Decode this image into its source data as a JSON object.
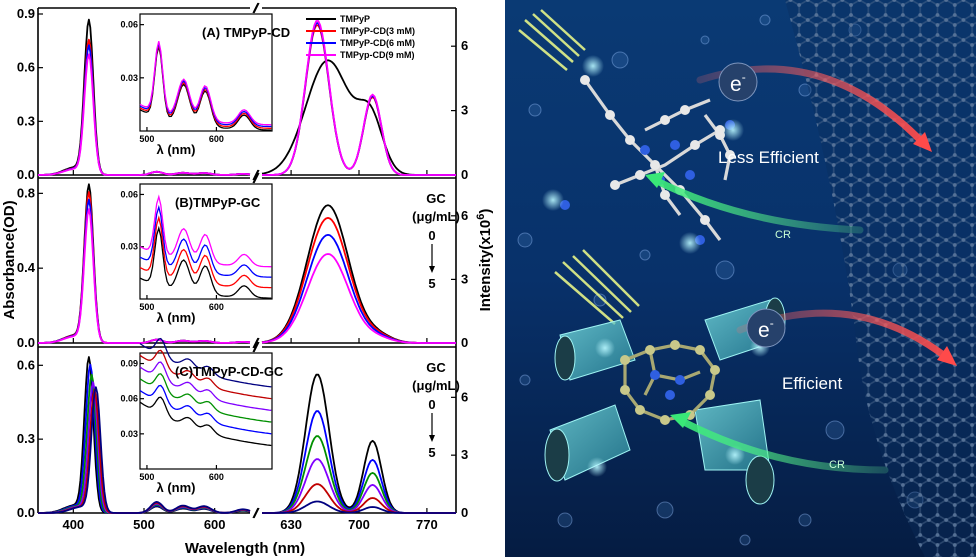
{
  "figure": {
    "xlabel": "Wavelength (nm)",
    "ylabel_left": "Absorbance(OD)",
    "ylabel_right_prefix": "Intensity(x10",
    "ylabel_right_exp": "6",
    "ylabel_right_suffix": ")",
    "inset_xlabel": "λ (nm)"
  },
  "chart_data": [
    {
      "id": "A",
      "type": "line",
      "title": "(A) TMPyP-CD",
      "abs_ylim": [
        0,
        0.9
      ],
      "abs_yticks": [
        "0.0",
        "0.3",
        "0.6",
        "0.9"
      ],
      "em_yticks": [
        "0",
        "3",
        "6"
      ],
      "em_ylim": [
        0,
        7.5
      ],
      "series": [
        {
          "name": "TMPyP",
          "color": "#000000",
          "soret": 0.85,
          "q": 0.02,
          "em": 5.8
        },
        {
          "name": "TMPyP-CD(3 mM)",
          "color": "#ff0000",
          "soret": 0.74,
          "q": 0.02,
          "em": 7.0
        },
        {
          "name": "TMPyP-CD(6 mM)",
          "color": "#0000ff",
          "soret": 0.71,
          "q": 0.02,
          "em": 7.1
        },
        {
          "name": "TMPyp-CD(9 mM)",
          "color": "#ff00ff",
          "soret": 0.66,
          "q": 0.02,
          "em": 7.2
        }
      ],
      "inset": {
        "yticks": [
          "0.03",
          "0.06"
        ],
        "xticks": [
          "500",
          "600"
        ]
      }
    },
    {
      "id": "B",
      "type": "line",
      "title": "(B)TMPyP-GC",
      "abs_ylim": [
        0,
        0.85
      ],
      "abs_yticks": [
        "0.0",
        "0.4",
        "0.8"
      ],
      "em_yticks": [
        "0",
        "3",
        "6"
      ],
      "em_ylim": [
        0,
        7.5
      ],
      "annotation": {
        "label": "GC",
        "unit": "(μg/mL)",
        "from": "0",
        "to": "5"
      },
      "series": [
        {
          "name": "GC 0",
          "color": "#000000",
          "soret": 0.83,
          "em": 6.5
        },
        {
          "name": "GC 1",
          "color": "#ff0000",
          "soret": 0.79,
          "em": 5.9
        },
        {
          "name": "GC 2",
          "color": "#0000ff",
          "soret": 0.75,
          "em": 5.1
        },
        {
          "name": "GC 3",
          "color": "#ff00ff",
          "soret": 0.7,
          "em": 4.2
        }
      ],
      "inset": {
        "yticks": [
          "0.03",
          "0.06"
        ],
        "xticks": [
          "500",
          "600"
        ]
      }
    },
    {
      "id": "C",
      "type": "line",
      "title": "(C)TMPyP-CD-GC",
      "abs_ylim": [
        0,
        0.65
      ],
      "abs_yticks": [
        "0.0",
        "0.3",
        "0.6"
      ],
      "em_yticks": [
        "0",
        "3",
        "6"
      ],
      "em_ylim": [
        0,
        8.3
      ],
      "annotation": {
        "label": "GC",
        "unit": "(μg/mL)",
        "from": "0",
        "to": "5"
      },
      "series": [
        {
          "name": "GC 0",
          "color": "#000000",
          "soret": 0.62,
          "shift": 0,
          "em": 7.2
        },
        {
          "name": "GC 1",
          "color": "#0000ff",
          "soret": 0.59,
          "shift": 2,
          "em": 5.3
        },
        {
          "name": "GC 2",
          "color": "#009000",
          "soret": 0.55,
          "shift": 4,
          "em": 4.0
        },
        {
          "name": "GC 3",
          "color": "#8000ff",
          "soret": 0.52,
          "shift": 6,
          "em": 2.8
        },
        {
          "name": "GC 4",
          "color": "#c00000",
          "soret": 0.49,
          "shift": 8,
          "em": 1.5
        },
        {
          "name": "GC 5",
          "color": "#000080",
          "soret": 0.5,
          "shift": 10,
          "em": 0.6
        }
      ],
      "inset": {
        "yticks": [
          "0.03",
          "0.06",
          "0.09"
        ],
        "xticks": [
          "500",
          "600"
        ]
      }
    }
  ],
  "x_axis": {
    "abs_ticks": [
      "400",
      "500",
      "600"
    ],
    "em_ticks": [
      "630",
      "700",
      "770"
    ]
  },
  "illustration": {
    "label_less": "Less Efficient",
    "label_eff": "Efficient",
    "electron": "e",
    "electron_sup": "-",
    "cr": "CR"
  }
}
